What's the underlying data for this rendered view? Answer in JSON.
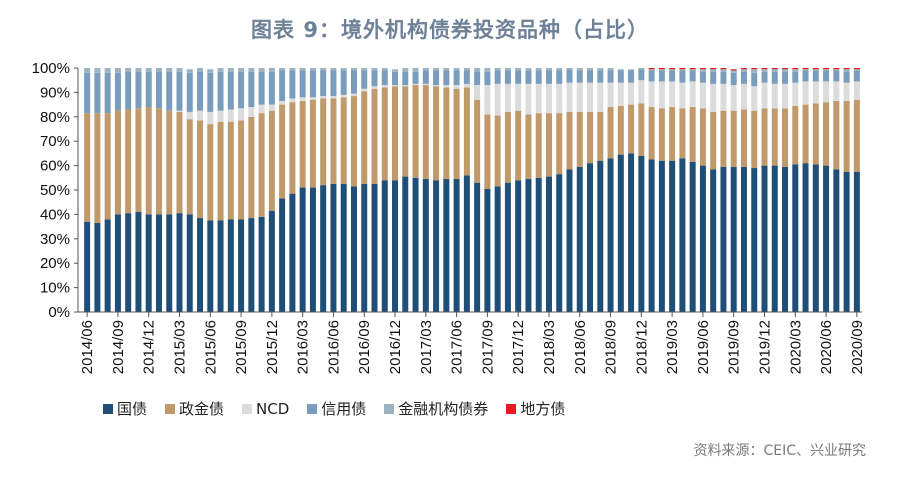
{
  "title": "图表 9：境外机构债券投资品种（占比）",
  "source": "资料来源：CEIC、兴业研究",
  "chart_data": {
    "type": "bar",
    "stacked": true,
    "percent": true,
    "title": "图表 9：境外机构债券投资品种（占比）",
    "xlabel": "",
    "ylabel": "",
    "ylim": [
      0,
      100
    ],
    "yticks": [
      "0%",
      "10%",
      "20%",
      "30%",
      "40%",
      "50%",
      "60%",
      "70%",
      "80%",
      "90%",
      "100%"
    ],
    "xtick_labels": [
      "2014/06",
      "2014/09",
      "2014/12",
      "2015/03",
      "2015/06",
      "2015/09",
      "2015/12",
      "2016/03",
      "2016/06",
      "2016/09",
      "2016/12",
      "2017/03",
      "2017/06",
      "2017/09",
      "2017/12",
      "2018/03",
      "2018/06",
      "2018/09",
      "2018/12",
      "2019/03",
      "2019/06",
      "2019/09",
      "2019/12",
      "2020/03",
      "2020/06",
      "2020/09"
    ],
    "legend_position": "bottom",
    "categories": [
      "2014/06",
      "2014/07",
      "2014/08",
      "2014/09",
      "2014/10",
      "2014/11",
      "2014/12",
      "2015/01",
      "2015/02",
      "2015/03",
      "2015/04",
      "2015/05",
      "2015/06",
      "2015/07",
      "2015/08",
      "2015/09",
      "2015/10",
      "2015/11",
      "2015/12",
      "2016/01",
      "2016/02",
      "2016/03",
      "2016/04",
      "2016/05",
      "2016/06",
      "2016/07",
      "2016/08",
      "2016/09",
      "2016/10",
      "2016/11",
      "2016/12",
      "2017/01",
      "2017/02",
      "2017/03",
      "2017/04",
      "2017/05",
      "2017/06",
      "2017/07",
      "2017/08",
      "2017/09",
      "2017/10",
      "2017/11",
      "2017/12",
      "2018/01",
      "2018/02",
      "2018/03",
      "2018/04",
      "2018/05",
      "2018/06",
      "2018/07",
      "2018/08",
      "2018/09",
      "2018/10",
      "2018/11",
      "2018/12",
      "2019/01",
      "2019/02",
      "2019/03",
      "2019/04",
      "2019/05",
      "2019/06",
      "2019/07",
      "2019/08",
      "2019/09",
      "2019/10",
      "2019/11",
      "2019/12",
      "2020/01",
      "2020/02",
      "2020/03",
      "2020/04",
      "2020/05",
      "2020/06",
      "2020/07",
      "2020/08",
      "2020/09"
    ],
    "series": [
      {
        "name": "国债",
        "color": "#1f4e79",
        "values": [
          37,
          36.5,
          38,
          40,
          40.5,
          41,
          40,
          40,
          40,
          40.5,
          40,
          38.5,
          37.5,
          37.5,
          38,
          38,
          38.5,
          39,
          41.5,
          46.5,
          48.5,
          51,
          51,
          52,
          52.5,
          52.5,
          51.5,
          52.5,
          52.5,
          54,
          54,
          55.5,
          55,
          54.5,
          54,
          54.5,
          54.5,
          56,
          53,
          50.5,
          51.5,
          53,
          54,
          54.5,
          55,
          55.5,
          56.5,
          58.5,
          59.5,
          61,
          62,
          63,
          64.5,
          65,
          64,
          62.5,
          62,
          62,
          63,
          61.5,
          60,
          58.5,
          59.5,
          59.5,
          59.5,
          59,
          60,
          60,
          59.5,
          60.5,
          61,
          60.5,
          60,
          58.5,
          57.5,
          57.5
        ]
      },
      {
        "name": "政金债",
        "color": "#c09a6b",
        "values": [
          44.5,
          45,
          43.5,
          42.5,
          42.5,
          42.5,
          44,
          43.5,
          42.5,
          41.5,
          39,
          40,
          39.5,
          40.5,
          40,
          40.5,
          41.5,
          42.5,
          41,
          38.5,
          37.5,
          35.5,
          36,
          35.5,
          35,
          35.5,
          37,
          38,
          39,
          38,
          38.5,
          37,
          38,
          38.5,
          38.5,
          37.5,
          37,
          36,
          34,
          30.5,
          29,
          29,
          28.5,
          26.5,
          26.5,
          26,
          25,
          23.5,
          22.5,
          21,
          20,
          21,
          20,
          20,
          21.5,
          21.5,
          21.5,
          22,
          20.5,
          22.5,
          23.5,
          23.5,
          23,
          23,
          23.5,
          23.5,
          23.5,
          23.5,
          24,
          24,
          24,
          25,
          26,
          28,
          29,
          29.5
        ]
      },
      {
        "name": "NCD",
        "color": "#dcdcdc",
        "values": [
          0,
          0,
          0,
          0,
          0,
          0,
          0,
          0,
          0,
          0.5,
          3,
          4,
          5,
          4.5,
          5,
          5,
          4,
          3.5,
          2.5,
          1.5,
          1.5,
          1.5,
          1,
          1,
          1,
          1,
          1,
          1,
          1,
          1,
          0.5,
          0.5,
          0.5,
          0.5,
          0.5,
          1,
          1.5,
          1.5,
          6,
          12,
          13,
          11.5,
          11,
          12.5,
          12,
          12,
          12,
          12,
          12,
          12,
          12,
          10,
          9.5,
          9,
          9.5,
          10.5,
          11,
          10.5,
          10.5,
          10.5,
          10.5,
          11.5,
          11,
          10.5,
          10.5,
          10,
          10.5,
          10,
          10,
          9.5,
          9.5,
          9,
          8.5,
          8,
          7.5,
          7.5
        ]
      },
      {
        "name": "信用债",
        "color": "#7a9cbd",
        "values": [
          16.5,
          16.5,
          16.5,
          15.5,
          15.5,
          15,
          14.5,
          15,
          16,
          16,
          16,
          16,
          16,
          16,
          15.5,
          15,
          14.5,
          13.5,
          13.5,
          12.5,
          11.5,
          11,
          11,
          10.5,
          10.5,
          10,
          9.5,
          7.5,
          6.5,
          6,
          5.5,
          5.5,
          5,
          5.5,
          6,
          6,
          6,
          5.5,
          5.5,
          5.5,
          5.5,
          5.5,
          5.5,
          5.5,
          5.5,
          5.5,
          5.5,
          5.5,
          5,
          5,
          5,
          5,
          5,
          5,
          4.5,
          4.5,
          4.5,
          4.5,
          5,
          4.5,
          4.5,
          5,
          5,
          5,
          5,
          5.5,
          4.5,
          5,
          5,
          4.5,
          4.5,
          4.5,
          4.5,
          4.5,
          4.5,
          4.5
        ]
      },
      {
        "name": "金融机构债券",
        "color": "#9eb3c2",
        "values": [
          2,
          2,
          2,
          2,
          1.5,
          1.5,
          1.5,
          1.5,
          1.5,
          1.5,
          1.5,
          1.5,
          1.5,
          1.5,
          1.5,
          1.5,
          1.5,
          1.5,
          1.5,
          1,
          1,
          1,
          1,
          1,
          1,
          1,
          1,
          1,
          1,
          1,
          1,
          1.5,
          1.5,
          1,
          1,
          1,
          1,
          1,
          1.5,
          1.5,
          1,
          1,
          1,
          1,
          1,
          1,
          1,
          0.5,
          1,
          1,
          1,
          1,
          0.5,
          0.5,
          0.5,
          0.5,
          0.5,
          0.5,
          0.5,
          0.5,
          1,
          1,
          1,
          1,
          1,
          1.5,
          1,
          1,
          1,
          1,
          0.5,
          0.5,
          0.5,
          0.5,
          1,
          0.5
        ]
      },
      {
        "name": "地方债",
        "color": "#e8191f",
        "values": [
          0,
          0,
          0,
          0,
          0,
          0,
          0,
          0,
          0,
          0,
          0,
          0,
          0,
          0,
          0,
          0,
          0,
          0,
          0,
          0,
          0,
          0,
          0,
          0,
          0,
          0,
          0,
          0,
          0,
          0,
          0,
          0,
          0,
          0,
          0,
          0,
          0,
          0,
          0,
          0,
          0,
          0,
          0,
          0,
          0,
          0,
          0,
          0,
          0,
          0,
          0,
          0,
          0,
          0,
          0,
          0.5,
          0.5,
          0.5,
          0.5,
          0.5,
          0.5,
          0.5,
          0.5,
          0.5,
          0.5,
          0.5,
          0.5,
          0.5,
          0.5,
          0.5,
          0.5,
          0.5,
          0.5,
          0.5,
          0.5,
          0.5
        ]
      }
    ]
  }
}
